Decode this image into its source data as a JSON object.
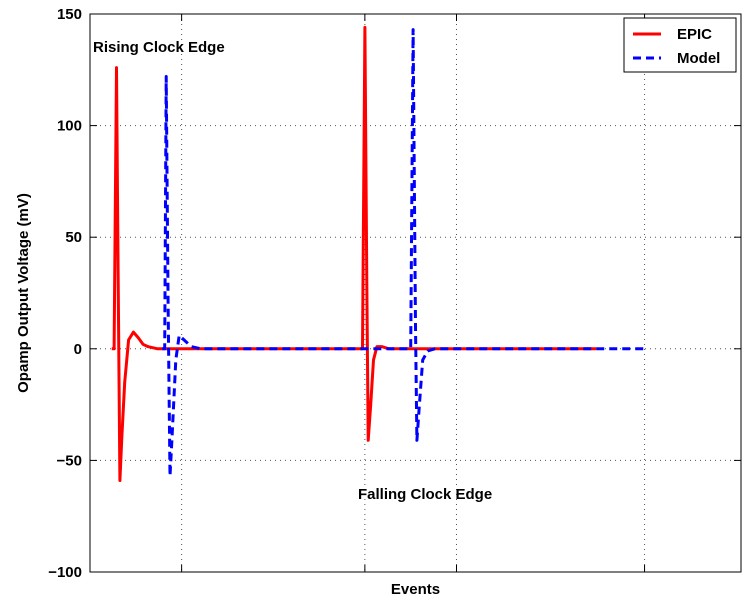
{
  "chart_data": {
    "type": "line",
    "title": "",
    "xlabel": "Events",
    "ylabel": "Opamp Output Voltage (mV)",
    "xlim": [
      0,
      13.5
    ],
    "ylim": [
      -100,
      150
    ],
    "yticks": [
      -100,
      -50,
      0,
      50,
      100,
      150
    ],
    "ytick_labels": [
      "−100",
      "−50",
      "0",
      "50",
      "100",
      "150"
    ],
    "xticks": [
      1.9,
      5.7,
      7.6,
      11.5
    ],
    "xtick_labels": [
      "",
      "",
      "",
      ""
    ],
    "grid": true,
    "legend_position": "top-right",
    "annotations": [
      {
        "text": "Rising Clock Edge",
        "x": 1.8,
        "y": 134
      },
      {
        "text": "Falling Clock Edge",
        "x": 7.4,
        "y": -67
      }
    ],
    "series": [
      {
        "name": "EPIC",
        "color": "#ff0000",
        "style": "solid",
        "x": [
          0.45,
          0.5,
          0.55,
          0.58,
          0.62,
          0.66,
          0.72,
          0.8,
          0.9,
          1.0,
          1.1,
          1.2,
          1.4,
          1.6,
          1.9,
          2.3,
          3.0,
          5.0,
          5.5,
          5.6,
          5.65,
          5.7,
          5.74,
          5.77,
          5.82,
          5.88,
          5.95,
          6.05,
          6.2,
          6.4,
          7.0,
          9.0,
          10.5
        ],
        "y": [
          0,
          0,
          126,
          40,
          -59,
          -40,
          -15,
          4,
          7.5,
          5,
          2,
          1,
          0,
          0,
          0,
          0,
          0,
          0,
          0,
          0,
          0,
          144,
          30,
          -41,
          -25,
          -5,
          1,
          1,
          0,
          0,
          0,
          0,
          0
        ]
      },
      {
        "name": "Model",
        "color": "#0000ff",
        "style": "dashed",
        "x": [
          1.5,
          1.55,
          1.58,
          1.62,
          1.66,
          1.7,
          1.78,
          1.85,
          1.95,
          2.1,
          2.3,
          2.6,
          3.0,
          6.0,
          6.5,
          6.6,
          6.65,
          6.7,
          6.75,
          6.78,
          6.83,
          6.9,
          7.0,
          7.15,
          7.3,
          8.0,
          11.5
        ],
        "y": [
          0,
          0,
          122,
          20,
          -57,
          -40,
          -5,
          6,
          4,
          1,
          0,
          0,
          0,
          0,
          0,
          0,
          0,
          143,
          10,
          -41,
          -25,
          -5,
          -1,
          0,
          0,
          0,
          0
        ]
      }
    ]
  }
}
